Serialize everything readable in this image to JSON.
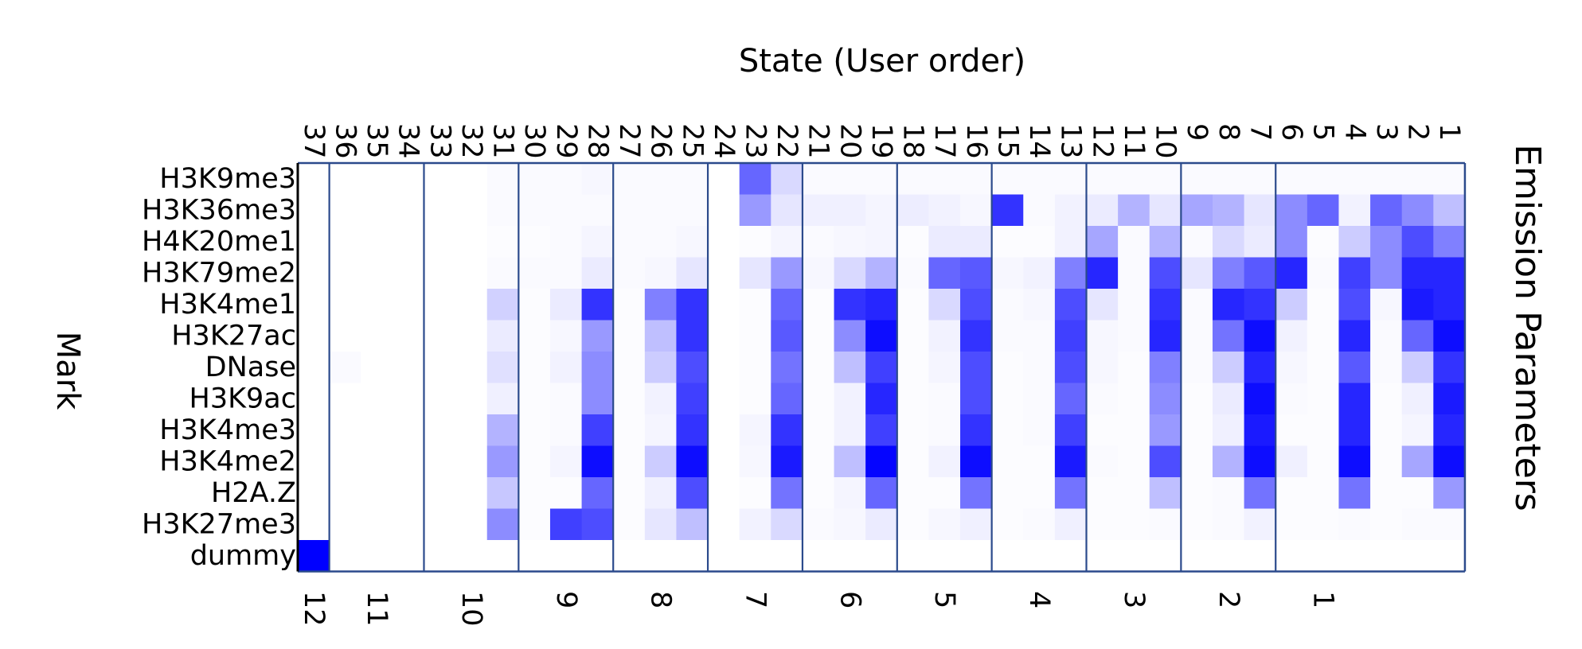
{
  "chart_data": {
    "type": "heatmap",
    "title": "State (User order)",
    "ylabel": "Mark",
    "right_label": "Emission Parameters",
    "states": [
      "37",
      "36",
      "35",
      "34",
      "33",
      "32",
      "31",
      "30",
      "29",
      "28",
      "27",
      "26",
      "25",
      "24",
      "23",
      "22",
      "21",
      "20",
      "19",
      "18",
      "17",
      "16",
      "15",
      "14",
      "13",
      "12",
      "11",
      "10",
      "9",
      "8",
      "7",
      "6",
      "5",
      "4",
      "3",
      "2",
      "1"
    ],
    "marks": [
      "H3K9me3",
      "H3K36me3",
      "H4K20me1",
      "H3K79me2",
      "H3K4me1",
      "H3K27ac",
      "DNase",
      "H3K9ac",
      "H3K4me3",
      "H3K4me2",
      "H2A.Z",
      "H3K27me3",
      "dummy"
    ],
    "groups": [
      {
        "label": "12",
        "states": 1
      },
      {
        "label": "11",
        "states": 3
      },
      {
        "label": "10",
        "states": 3
      },
      {
        "label": "9",
        "states": 3
      },
      {
        "label": "8",
        "states": 3
      },
      {
        "label": "7",
        "states": 3
      },
      {
        "label": "6",
        "states": 3
      },
      {
        "label": "5",
        "states": 3
      },
      {
        "label": "4",
        "states": 3
      },
      {
        "label": "3",
        "states": 3
      },
      {
        "label": "2",
        "states": 3
      },
      {
        "label": "1",
        "states": 3
      }
    ],
    "color_low": "#ffffff",
    "color_high": "#0000ff",
    "value_range": [
      0,
      1
    ],
    "values": [
      [
        0,
        0,
        0,
        0,
        0,
        0,
        0.02,
        0.02,
        0.02,
        0.03,
        0.02,
        0.02,
        0.02,
        0,
        0.6,
        0.15,
        0.02,
        0.02,
        0.02,
        0.02,
        0.02,
        0.02,
        0.02,
        0.02,
        0.02,
        0.02,
        0.02,
        0.02,
        0.02,
        0.02,
        0.02,
        0.02,
        0.02,
        0.02,
        0.02,
        0.02,
        0.02
      ],
      [
        0,
        0,
        0,
        0,
        0,
        0,
        0.02,
        0.02,
        0.02,
        0.02,
        0.02,
        0.02,
        0.02,
        0,
        0.4,
        0.1,
        0.06,
        0.06,
        0.04,
        0.07,
        0.05,
        0.03,
        0.8,
        0.02,
        0.05,
        0.08,
        0.3,
        0.1,
        0.35,
        0.3,
        0.1,
        0.45,
        0.6,
        0.05,
        0.6,
        0.45,
        0.25
      ],
      [
        0,
        0,
        0,
        0,
        0,
        0,
        0.01,
        0.01,
        0.02,
        0.04,
        0.02,
        0.02,
        0.03,
        0,
        0.01,
        0.04,
        0.02,
        0.03,
        0.04,
        0.01,
        0.08,
        0.08,
        0.01,
        0.01,
        0.05,
        0.35,
        0.02,
        0.3,
        0.02,
        0.15,
        0.08,
        0.45,
        0.01,
        0.2,
        0.45,
        0.7,
        0.5
      ],
      [
        0,
        0,
        0,
        0,
        0,
        0,
        0.02,
        0.02,
        0.02,
        0.08,
        0.02,
        0.03,
        0.1,
        0,
        0.1,
        0.4,
        0.03,
        0.15,
        0.3,
        0.02,
        0.6,
        0.65,
        0.03,
        0.05,
        0.5,
        0.85,
        0.02,
        0.7,
        0.1,
        0.5,
        0.65,
        0.85,
        0.02,
        0.75,
        0.45,
        0.85,
        0.85
      ],
      [
        0,
        0,
        0,
        0,
        0,
        0,
        0.18,
        0.01,
        0.08,
        0.8,
        0.01,
        0.5,
        0.8,
        0,
        0.01,
        0.6,
        0.01,
        0.8,
        0.85,
        0.01,
        0.15,
        0.7,
        0.02,
        0.03,
        0.7,
        0.1,
        0.02,
        0.8,
        0.02,
        0.85,
        0.8,
        0.2,
        0.01,
        0.7,
        0.03,
        0.9,
        0.85
      ],
      [
        0,
        0,
        0,
        0,
        0,
        0,
        0.08,
        0.01,
        0.03,
        0.4,
        0.01,
        0.25,
        0.8,
        0,
        0.01,
        0.65,
        0.01,
        0.45,
        0.95,
        0.01,
        0.05,
        0.8,
        0.02,
        0.02,
        0.75,
        0.03,
        0.02,
        0.85,
        0.02,
        0.55,
        0.95,
        0.05,
        0.01,
        0.85,
        0.02,
        0.6,
        0.95
      ],
      [
        0,
        0.02,
        0,
        0,
        0,
        0,
        0.12,
        0.01,
        0.05,
        0.45,
        0.01,
        0.2,
        0.7,
        0,
        0.01,
        0.55,
        0.01,
        0.25,
        0.75,
        0.01,
        0.04,
        0.7,
        0.01,
        0.02,
        0.7,
        0.03,
        0.01,
        0.5,
        0.02,
        0.2,
        0.85,
        0.03,
        0.01,
        0.65,
        0.02,
        0.2,
        0.8
      ],
      [
        0,
        0,
        0,
        0,
        0,
        0,
        0.06,
        0.01,
        0.02,
        0.45,
        0.01,
        0.05,
        0.75,
        0,
        0.01,
        0.6,
        0.01,
        0.05,
        0.85,
        0.01,
        0.02,
        0.7,
        0.01,
        0.02,
        0.6,
        0.02,
        0.01,
        0.45,
        0.01,
        0.08,
        0.95,
        0.02,
        0.01,
        0.85,
        0.01,
        0.06,
        0.9
      ],
      [
        0,
        0,
        0,
        0,
        0,
        0,
        0.3,
        0.01,
        0.02,
        0.75,
        0.01,
        0.04,
        0.8,
        0,
        0.04,
        0.8,
        0.01,
        0.05,
        0.75,
        0.01,
        0.02,
        0.8,
        0.01,
        0.02,
        0.75,
        0.01,
        0.01,
        0.4,
        0.01,
        0.06,
        0.9,
        0.01,
        0.01,
        0.85,
        0.01,
        0.04,
        0.85
      ],
      [
        0,
        0,
        0,
        0,
        0,
        0,
        0.4,
        0.01,
        0.04,
        0.95,
        0.01,
        0.2,
        0.95,
        0,
        0.03,
        0.9,
        0.01,
        0.25,
        0.98,
        0.01,
        0.05,
        0.95,
        0.01,
        0.01,
        0.9,
        0.02,
        0.01,
        0.7,
        0.01,
        0.3,
        0.95,
        0.06,
        0.01,
        0.95,
        0.01,
        0.35,
        0.95
      ],
      [
        0,
        0,
        0,
        0,
        0,
        0,
        0.22,
        0.01,
        0.01,
        0.6,
        0.01,
        0.06,
        0.7,
        0,
        0.01,
        0.55,
        0.01,
        0.04,
        0.6,
        0.01,
        0.01,
        0.55,
        0.01,
        0.01,
        0.55,
        0.01,
        0.01,
        0.25,
        0.01,
        0.02,
        0.55,
        0.01,
        0.01,
        0.55,
        0.01,
        0.01,
        0.4
      ],
      [
        0,
        0,
        0,
        0,
        0,
        0,
        0.45,
        0.01,
        0.75,
        0.7,
        0.01,
        0.1,
        0.25,
        0,
        0.05,
        0.15,
        0.02,
        0.03,
        0.08,
        0.01,
        0.03,
        0.06,
        0.01,
        0.02,
        0.06,
        0.01,
        0.01,
        0.02,
        0.01,
        0.02,
        0.05,
        0.01,
        0.01,
        0.02,
        0.01,
        0.02,
        0.02
      ],
      [
        1,
        0,
        0,
        0,
        0,
        0,
        0,
        0,
        0,
        0,
        0,
        0,
        0,
        0,
        0,
        0,
        0,
        0,
        0,
        0,
        0,
        0,
        0,
        0,
        0,
        0,
        0,
        0,
        0,
        0,
        0,
        0,
        0,
        0,
        0,
        0,
        0
      ]
    ]
  }
}
